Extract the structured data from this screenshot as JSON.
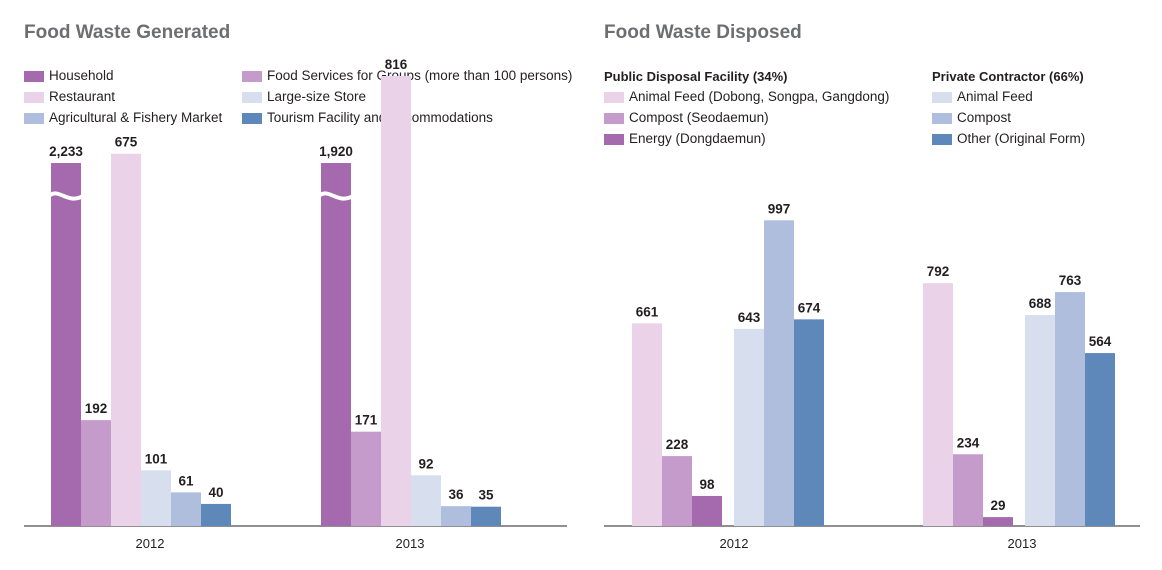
{
  "chart_data": [
    {
      "type": "bar",
      "title": "Food Waste Generated",
      "categories": [
        "2012",
        "2013"
      ],
      "broken_axis": true,
      "series": [
        {
          "name": "Household",
          "color": "#a56aad",
          "values": [
            2233,
            1920
          ],
          "labels": [
            "2,233",
            "1,920"
          ]
        },
        {
          "name": "Food Services for Groups (more than 100 persons)",
          "color": "#c49bcb",
          "values": [
            192,
            171
          ],
          "labels": [
            "192",
            "171"
          ]
        },
        {
          "name": "Restaurant",
          "color": "#ead3e9",
          "values": [
            675,
            816
          ],
          "labels": [
            "675",
            "816"
          ]
        },
        {
          "name": "Large-size Store",
          "color": "#d7dfee",
          "values": [
            101,
            92
          ],
          "labels": [
            "101",
            "92"
          ]
        },
        {
          "name": "Agricultural & Fishery Market",
          "color": "#b0bedd",
          "values": [
            61,
            36
          ],
          "labels": [
            "61",
            "36"
          ]
        },
        {
          "name": "Tourism Facility and Accommodations",
          "color": "#5e87ba",
          "values": [
            40,
            35
          ],
          "labels": [
            "40",
            "35"
          ]
        }
      ]
    },
    {
      "type": "bar",
      "title": "Food Waste Disposed",
      "categories": [
        "2012",
        "2013"
      ],
      "groups": [
        {
          "name": "Public Disposal Facility (34%)"
        },
        {
          "name": "Private Contractor (66%)"
        }
      ],
      "series": [
        {
          "name": "Animal Feed (Dobong, Songpa, Gangdong)",
          "group": 0,
          "color": "#ead3e9",
          "values": [
            661,
            792
          ],
          "labels": [
            "661",
            "792"
          ]
        },
        {
          "name": "Compost (Seodaemun)",
          "group": 0,
          "color": "#c49bcb",
          "values": [
            228,
            234
          ],
          "labels": [
            "228",
            "234"
          ]
        },
        {
          "name": "Energy (Dongdaemun)",
          "group": 0,
          "color": "#a56aad",
          "values": [
            98,
            29
          ],
          "labels": [
            "98",
            "29"
          ]
        },
        {
          "name": "Animal Feed",
          "group": 1,
          "color": "#d7dfee",
          "values": [
            643,
            688
          ],
          "labels": [
            "643",
            "688"
          ]
        },
        {
          "name": "Compost",
          "group": 1,
          "color": "#b0bedd",
          "values": [
            997,
            763
          ],
          "labels": [
            "997",
            "763"
          ]
        },
        {
          "name": "Other (Original Form)",
          "group": 1,
          "color": "#5e87ba",
          "values": [
            674,
            564
          ],
          "labels": [
            "674",
            "564"
          ]
        }
      ]
    }
  ]
}
